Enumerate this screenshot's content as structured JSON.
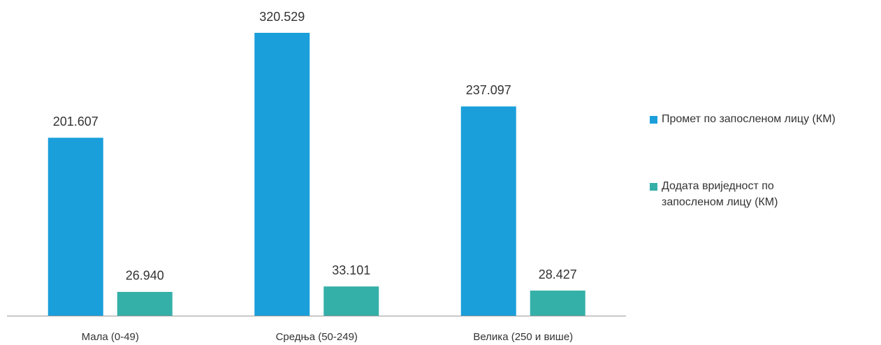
{
  "chart_data": {
    "type": "bar",
    "categories": [
      "Мала (0-49)",
      "Средња (50-249)",
      "Велика (250 и више)"
    ],
    "series": [
      {
        "name": "Промет по запосленом лицу (КМ)",
        "color": "#1a9fdb",
        "values": [
          201607,
          320529,
          237097
        ],
        "value_labels": [
          "201.607",
          "320.529",
          "237.097"
        ]
      },
      {
        "name": "Додата вриједност по запосленом лицу (КМ)",
        "color": "#35b0a8",
        "values": [
          26940,
          33101,
          28427
        ],
        "value_labels": [
          "26.940",
          "33.101",
          "28.427"
        ]
      }
    ],
    "legend": "right"
  }
}
